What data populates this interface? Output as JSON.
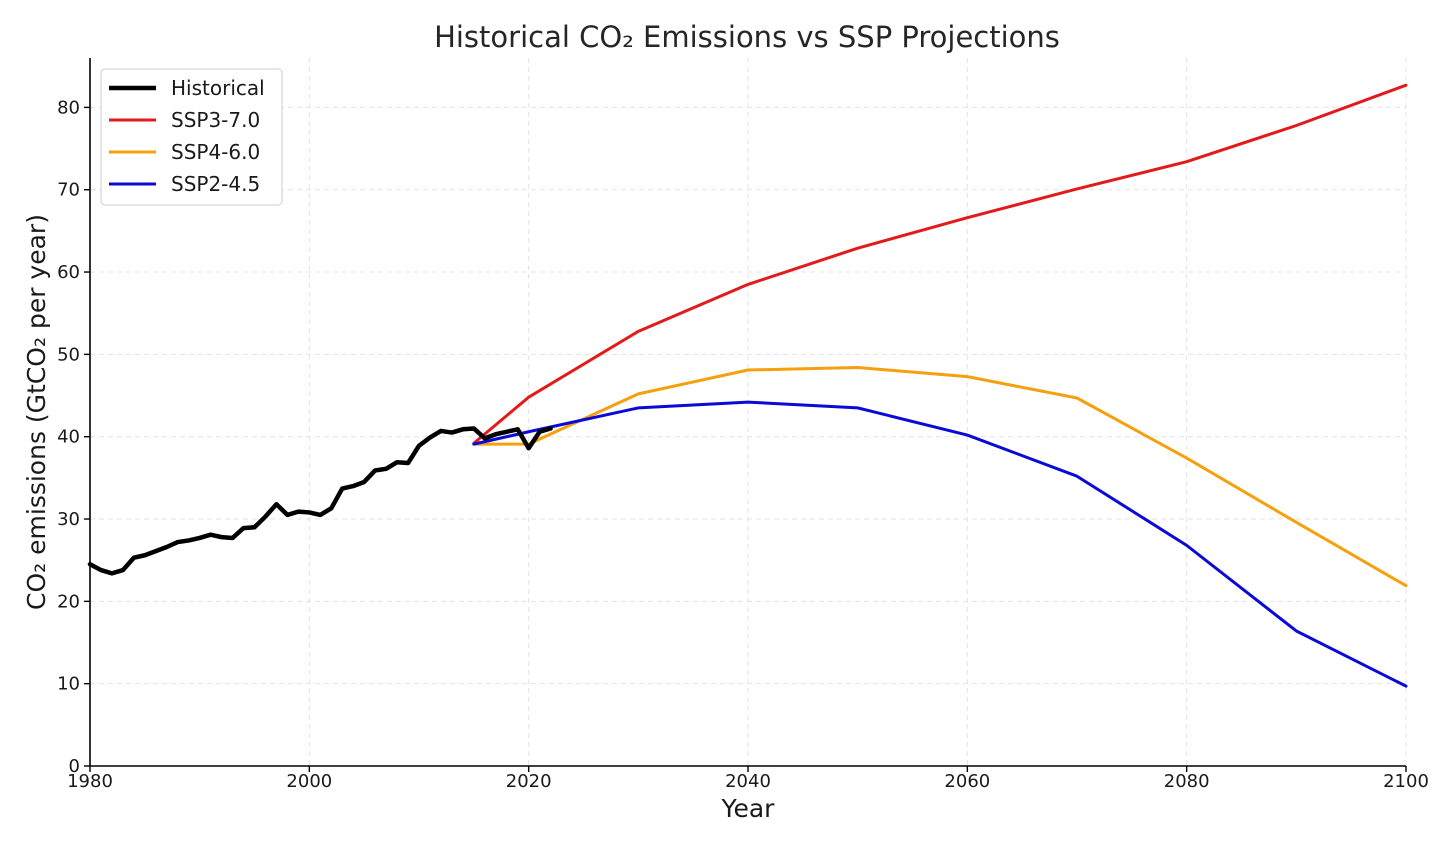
{
  "chart_data": {
    "type": "line",
    "title": "Historical CO₂ Emissions vs SSP Projections",
    "xlabel": "Year",
    "ylabel": "CO₂ emissions (GtCO₂ per year)",
    "xlim": [
      1980,
      2100
    ],
    "ylim": [
      0,
      86
    ],
    "xticks": [
      1980,
      2000,
      2020,
      2040,
      2060,
      2080,
      2100
    ],
    "yticks": [
      0,
      10,
      20,
      30,
      40,
      50,
      60,
      70,
      80
    ],
    "grid": true,
    "legend_position": "top-left",
    "series": [
      {
        "name": "Historical",
        "color": "#000000",
        "x": [
          1980,
          1981,
          1982,
          1983,
          1984,
          1985,
          1986,
          1987,
          1988,
          1989,
          1990,
          1991,
          1992,
          1993,
          1994,
          1995,
          1996,
          1997,
          1998,
          1999,
          2000,
          2001,
          2002,
          2003,
          2004,
          2005,
          2006,
          2007,
          2008,
          2009,
          2010,
          2011,
          2012,
          2013,
          2014,
          2015,
          2016,
          2017,
          2018,
          2019,
          2020,
          2021,
          2022
        ],
        "y": [
          24.5,
          23.8,
          23.4,
          23.8,
          25.3,
          25.6,
          26.1,
          26.6,
          27.2,
          27.4,
          27.7,
          28.1,
          27.8,
          27.7,
          28.9,
          29.0,
          30.3,
          31.8,
          30.5,
          30.9,
          30.8,
          30.5,
          31.3,
          33.7,
          34.0,
          34.5,
          35.9,
          36.1,
          36.9,
          36.8,
          38.9,
          39.9,
          40.7,
          40.5,
          40.9,
          41.0,
          39.8,
          40.3,
          40.6,
          40.9,
          38.6,
          40.6,
          41.0
        ]
      },
      {
        "name": "SSP3-7.0",
        "color": "#e31a1c",
        "x": [
          2015,
          2020,
          2030,
          2040,
          2050,
          2060,
          2070,
          2080,
          2090,
          2100
        ],
        "y": [
          39.2,
          44.8,
          52.8,
          58.5,
          62.9,
          66.6,
          70.1,
          73.4,
          77.8,
          82.7
        ]
      },
      {
        "name": "SSP4-6.0",
        "color": "#f5a00c",
        "x": [
          2015,
          2020,
          2030,
          2040,
          2050,
          2060,
          2070,
          2080,
          2090,
          2100
        ],
        "y": [
          39.1,
          39.1,
          45.2,
          48.1,
          48.4,
          47.3,
          44.7,
          37.4,
          29.6,
          21.9
        ]
      },
      {
        "name": "SSP2-4.5",
        "color": "#0a0ad8",
        "x": [
          2015,
          2020,
          2030,
          2040,
          2050,
          2060,
          2070,
          2080,
          2090,
          2100
        ],
        "y": [
          39.1,
          40.6,
          43.5,
          44.2,
          43.5,
          40.2,
          35.2,
          26.8,
          16.4,
          9.7
        ]
      }
    ]
  }
}
